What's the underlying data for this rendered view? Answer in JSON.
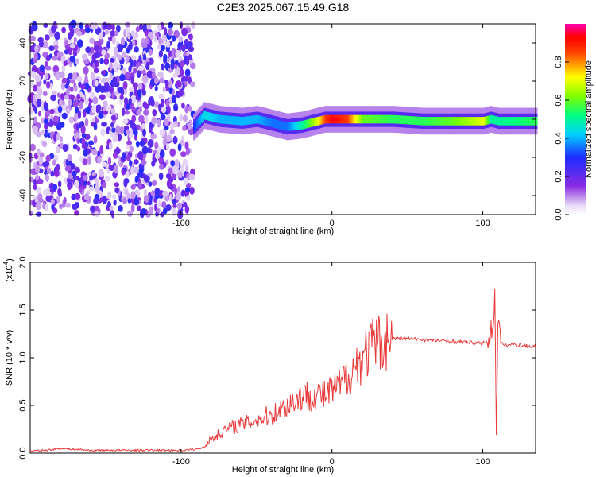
{
  "title": "C2E3.2025.067.15.49.G18",
  "chart_data": [
    {
      "type": "heatmap",
      "xlabel": "Height of straight line (km)",
      "ylabel": "Frequency (Hz)",
      "xlim": [
        -200,
        135
      ],
      "ylim": [
        -50,
        50
      ],
      "x_ticks": [
        -100,
        0,
        100
      ],
      "y_ticks": [
        -40,
        -20,
        0,
        20,
        40
      ],
      "colorbar": {
        "label": "Normalized spectral amplitude",
        "range": [
          0,
          1
        ],
        "ticks": [
          0.0,
          0.2,
          0.4,
          0.6,
          0.8
        ],
        "tick_labels": [
          "0.0",
          "0.2",
          "0.4",
          "0.6",
          "0.8"
        ],
        "colormap": "rainbow (white-violet-blue-cyan-green-yellow-red-magenta)"
      },
      "ridge": {
        "description": "dominant spectral line",
        "x": [
          -92,
          -85,
          -75,
          -60,
          -50,
          -40,
          -30,
          -20,
          -10,
          -5,
          0,
          5,
          10,
          20,
          40,
          60,
          80,
          100,
          105,
          110,
          135
        ],
        "frequency": [
          -4,
          2,
          0,
          -1,
          0,
          -2,
          -4,
          -3,
          -1,
          0,
          0,
          0,
          0,
          0,
          0,
          -1,
          -1,
          -1,
          0,
          -1,
          -1
        ],
        "amplitude": [
          0.3,
          0.45,
          0.4,
          0.4,
          0.4,
          0.35,
          0.35,
          0.5,
          0.7,
          0.85,
          0.95,
          0.9,
          0.85,
          0.6,
          0.55,
          0.55,
          0.6,
          0.7,
          0.5,
          0.5,
          0.55
        ]
      },
      "noise_region": {
        "x_range": [
          -200,
          -92
        ],
        "frequency_range": [
          -50,
          50
        ]
      }
    },
    {
      "type": "line",
      "xlabel": "Height of straight line (km)",
      "ylabel": "SNR (10 * v/v)",
      "y_exponent_label": "(x10",
      "y_exponent": "4",
      "y_exponent_close": ")",
      "xlim": [
        -200,
        135
      ],
      "ylim": [
        0,
        2.0
      ],
      "x_ticks": [
        -100,
        0,
        100
      ],
      "y_ticks": [
        0.0,
        0.5,
        1.0,
        1.5,
        2.0
      ],
      "y_tick_labels": [
        "0.0",
        "0.5",
        "1.0",
        "1.5",
        "2.0"
      ],
      "color": "#e8393a",
      "x": [
        -200,
        -190,
        -180,
        -170,
        -160,
        -150,
        -140,
        -130,
        -120,
        -110,
        -100,
        -90,
        -85,
        -80,
        -75,
        -70,
        -65,
        -60,
        -55,
        -50,
        -45,
        -40,
        -35,
        -30,
        -25,
        -20,
        -15,
        -10,
        -5,
        0,
        5,
        10,
        15,
        20,
        25,
        30,
        35,
        40,
        50,
        60,
        70,
        80,
        90,
        100,
        104,
        106,
        108,
        109,
        110,
        112,
        115,
        120,
        125,
        130,
        135
      ],
      "y": [
        0.02,
        0.03,
        0.05,
        0.04,
        0.03,
        0.03,
        0.03,
        0.03,
        0.03,
        0.03,
        0.03,
        0.04,
        0.06,
        0.15,
        0.2,
        0.25,
        0.28,
        0.3,
        0.32,
        0.35,
        0.38,
        0.4,
        0.45,
        0.5,
        0.55,
        0.6,
        0.6,
        0.62,
        0.6,
        0.65,
        0.7,
        0.8,
        0.9,
        1.0,
        1.1,
        1.15,
        1.18,
        1.2,
        1.2,
        1.19,
        1.18,
        1.17,
        1.16,
        1.15,
        1.18,
        1.3,
        1.6,
        0.3,
        1.4,
        1.15,
        1.13,
        1.14,
        1.13,
        1.12,
        1.12
      ]
    }
  ]
}
